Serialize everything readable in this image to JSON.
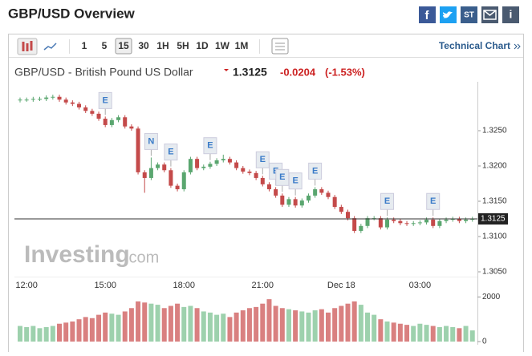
{
  "header": {
    "title": "GBP/USD Overview",
    "share": [
      "ST"
    ]
  },
  "toolbar": {
    "periods": [
      "1",
      "5",
      "15",
      "30",
      "1H",
      "5H",
      "1D",
      "1W",
      "1M"
    ],
    "selected": "15",
    "link": "Technical Chart"
  },
  "quote": {
    "name": "GBP/USD - British Pound US Dollar",
    "price": "1.3125",
    "change": "-0.0204",
    "change_pct": "(-1.53%)"
  },
  "watermark": {
    "brand": "Investing",
    ".com": ".com"
  },
  "chart_data": {
    "type": "candlestick",
    "categories": [
      null,
      "12:00",
      null,
      null,
      null,
      null,
      null,
      null,
      null,
      null,
      null,
      null,
      null,
      "15:00",
      null,
      null,
      null,
      null,
      null,
      null,
      null,
      null,
      null,
      null,
      null,
      "18:00",
      null,
      null,
      null,
      null,
      null,
      null,
      null,
      null,
      null,
      null,
      null,
      "21:00",
      null,
      null,
      null,
      null,
      null,
      null,
      null,
      null,
      null,
      null,
      null,
      "Dec 18",
      null,
      null,
      null,
      null,
      null,
      null,
      null,
      null,
      null,
      null,
      null,
      "03:00",
      null,
      null,
      null,
      null,
      null,
      null,
      null,
      null
    ],
    "open": [
      1.3293,
      1.3294,
      1.3294,
      1.3295,
      1.3295,
      1.3297,
      1.3298,
      1.3294,
      1.329,
      1.3288,
      1.3283,
      1.3278,
      1.3274,
      1.3267,
      1.3258,
      1.3265,
      1.3269,
      1.3256,
      1.3253,
      1.3191,
      1.3183,
      1.3197,
      1.3202,
      1.3194,
      1.3172,
      1.3167,
      1.3191,
      1.321,
      1.3197,
      1.3199,
      1.3203,
      1.3208,
      1.321,
      1.3205,
      1.3197,
      1.3192,
      1.319,
      1.3183,
      1.3174,
      1.3167,
      1.3158,
      1.3145,
      1.3153,
      1.3144,
      1.3151,
      1.3158,
      1.3167,
      1.3162,
      1.3156,
      1.3142,
      1.3135,
      1.3126,
      1.3108,
      1.3115,
      1.3126,
      1.3126,
      1.3113,
      1.3124,
      1.3122,
      1.3119,
      1.3118,
      1.3119,
      1.312,
      1.3124,
      1.3115,
      1.3122,
      1.3124,
      1.3125,
      1.3122,
      1.3124
    ],
    "high": [
      1.3297,
      1.3297,
      1.3298,
      1.3298,
      1.33,
      1.3301,
      1.3301,
      1.3297,
      1.3293,
      1.3291,
      1.3286,
      1.3281,
      1.3277,
      1.327,
      1.3268,
      1.3272,
      1.3272,
      1.3259,
      1.3256,
      1.3194,
      1.3212,
      1.3205,
      1.3205,
      1.3197,
      1.3175,
      1.3194,
      1.3213,
      1.3213,
      1.3202,
      1.3206,
      1.3211,
      1.3216,
      1.3213,
      1.3208,
      1.32,
      1.3195,
      1.3193,
      1.3186,
      1.3177,
      1.317,
      1.3161,
      1.3156,
      1.3156,
      1.3154,
      1.3161,
      1.317,
      1.317,
      1.3165,
      1.3159,
      1.3145,
      1.3138,
      1.3129,
      1.3118,
      1.3129,
      1.3129,
      1.3129,
      1.3127,
      1.3127,
      1.3125,
      1.3122,
      1.3122,
      1.3123,
      1.3127,
      1.3127,
      1.3125,
      1.3127,
      1.3128,
      1.3128,
      1.3127,
      1.3128
    ],
    "low": [
      1.329,
      1.3291,
      1.3291,
      1.3292,
      1.3292,
      1.3294,
      1.3291,
      1.3287,
      1.3285,
      1.328,
      1.3275,
      1.3271,
      1.3264,
      1.3255,
      1.3255,
      1.3262,
      1.3253,
      1.325,
      1.3188,
      1.3162,
      1.318,
      1.3194,
      1.3191,
      1.3169,
      1.3164,
      1.3164,
      1.3188,
      1.3194,
      1.3194,
      1.3196,
      1.32,
      1.3205,
      1.3202,
      1.3194,
      1.3189,
      1.3187,
      1.318,
      1.3171,
      1.3164,
      1.3155,
      1.3142,
      1.3142,
      1.3141,
      1.3141,
      1.3148,
      1.3155,
      1.3159,
      1.3153,
      1.3139,
      1.3132,
      1.3123,
      1.3105,
      1.3105,
      1.3112,
      1.3123,
      1.311,
      1.311,
      1.3119,
      1.3116,
      1.3115,
      1.3115,
      1.3116,
      1.3117,
      1.3112,
      1.3112,
      1.3119,
      1.3121,
      1.3119,
      1.3119,
      1.3121
    ],
    "close": [
      1.3294,
      1.3294,
      1.3295,
      1.3295,
      1.3297,
      1.3298,
      1.3294,
      1.329,
      1.3288,
      1.3283,
      1.3278,
      1.3274,
      1.3267,
      1.3258,
      1.3265,
      1.3269,
      1.3256,
      1.3253,
      1.3191,
      1.3183,
      1.3197,
      1.3202,
      1.3194,
      1.3172,
      1.3167,
      1.3191,
      1.321,
      1.3197,
      1.3199,
      1.3203,
      1.3208,
      1.321,
      1.3205,
      1.3197,
      1.3192,
      1.319,
      1.3183,
      1.3174,
      1.3167,
      1.3158,
      1.3145,
      1.3153,
      1.3144,
      1.3151,
      1.3158,
      1.3167,
      1.3162,
      1.3156,
      1.3142,
      1.3135,
      1.3126,
      1.3108,
      1.3115,
      1.3126,
      1.3126,
      1.3113,
      1.3124,
      1.3122,
      1.3119,
      1.3118,
      1.3119,
      1.312,
      1.3124,
      1.3115,
      1.3122,
      1.3124,
      1.3125,
      1.3122,
      1.3124,
      1.3125
    ],
    "up_color": "#5aa66f",
    "down_color": "#c44a4a",
    "ylim": [
      1.30432,
      1.33102
    ],
    "yticks": [
      {
        "value": 1.305,
        "label": "1.3050"
      },
      {
        "value": 1.31,
        "label": "1.3100"
      },
      {
        "value": 1.315,
        "label": "1.3150"
      },
      {
        "value": 1.32,
        "label": "1.3200"
      },
      {
        "value": 1.325,
        "label": "1.3250"
      }
    ],
    "last_price": {
      "value": 1.3125,
      "label": "1.3125"
    },
    "events": [
      {
        "label": "E",
        "index": 13
      },
      {
        "label": "N",
        "index": 20
      },
      {
        "label": "E",
        "index": 23
      },
      {
        "label": "E",
        "index": 29
      },
      {
        "label": "E",
        "index": 37
      },
      {
        "label": "E",
        "index": 39
      },
      {
        "label": "E",
        "index": 40
      },
      {
        "label": "E",
        "index": 42
      },
      {
        "label": "E",
        "index": 45
      },
      {
        "label": "E",
        "index": 56
      },
      {
        "label": "E",
        "index": 63
      }
    ],
    "volume": {
      "values": [
        700,
        650,
        700,
        600,
        650,
        700,
        800,
        850,
        900,
        1000,
        1100,
        1050,
        1200,
        1300,
        1250,
        1200,
        1350,
        1500,
        1800,
        1750,
        1700,
        1650,
        1500,
        1600,
        1700,
        1550,
        1600,
        1500,
        1350,
        1300,
        1200,
        1250,
        1100,
        1300,
        1400,
        1500,
        1550,
        1700,
        1900,
        1600,
        1500,
        1450,
        1400,
        1350,
        1300,
        1400,
        1450,
        1300,
        1500,
        1600,
        1700,
        1800,
        1650,
        1300,
        1200,
        1000,
        900,
        850,
        800,
        750,
        700,
        800,
        750,
        700,
        650,
        700,
        650,
        600,
        700,
        500
      ],
      "up_color": "#9dd1ad",
      "down_color": "#d98080",
      "ylim": [
        0,
        2300
      ],
      "yticks": [
        0,
        2000
      ]
    }
  }
}
